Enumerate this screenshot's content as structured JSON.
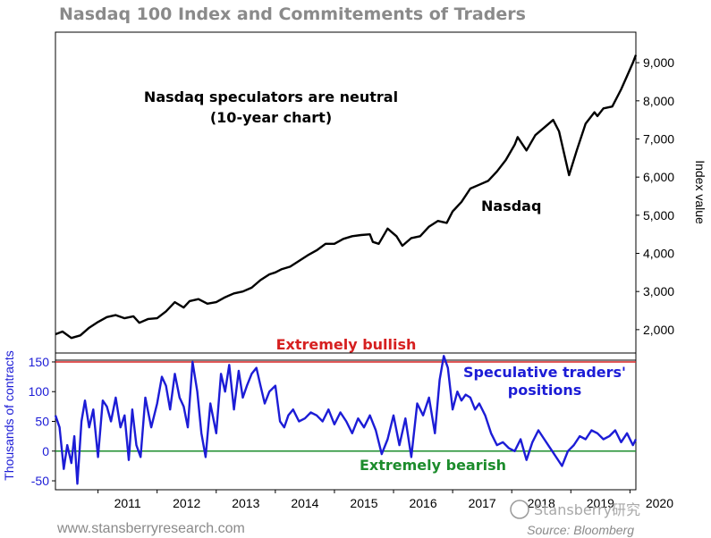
{
  "chart_data": [
    {
      "type": "line",
      "title": "Nasdaq 100 Index and Commitements of Traders",
      "annotation": "Nasdaq speculators are neutral",
      "annotation_sub": "(10-year chart)",
      "series_label": "Nasdaq",
      "ylabel": "Index value",
      "yticks": [
        "2,000",
        "3,000",
        "4,000",
        "5,000",
        "6,000",
        "7,000",
        "8,000",
        "9,000"
      ],
      "ylim": [
        1200,
        9800
      ],
      "xlim": [
        2010.28,
        2020.1
      ],
      "series": [
        {
          "name": "Nasdaq",
          "color": "#000000",
          "x": [
            2010.28,
            2010.4,
            2010.55,
            2010.7,
            2010.85,
            2011.0,
            2011.15,
            2011.3,
            2011.45,
            2011.6,
            2011.7,
            2011.85,
            2012.0,
            2012.15,
            2012.3,
            2012.45,
            2012.55,
            2012.7,
            2012.85,
            2013.0,
            2013.15,
            2013.3,
            2013.45,
            2013.6,
            2013.75,
            2013.9,
            2014.0,
            2014.1,
            2014.25,
            2014.4,
            2014.55,
            2014.7,
            2014.85,
            2015.0,
            2015.15,
            2015.3,
            2015.45,
            2015.6,
            2015.65,
            2015.75,
            2015.9,
            2016.05,
            2016.15,
            2016.3,
            2016.45,
            2016.6,
            2016.75,
            2016.9,
            2017.0,
            2017.15,
            2017.3,
            2017.45,
            2017.6,
            2017.75,
            2017.9,
            2018.05,
            2018.1,
            2018.25,
            2018.4,
            2018.55,
            2018.7,
            2018.8,
            2018.97,
            2019.1,
            2019.25,
            2019.4,
            2019.45,
            2019.55,
            2019.7,
            2019.85,
            2019.95,
            2020.05,
            2020.1
          ],
          "values": [
            1880,
            1950,
            1780,
            1850,
            2050,
            2200,
            2330,
            2380,
            2300,
            2350,
            2180,
            2280,
            2300,
            2480,
            2720,
            2580,
            2750,
            2800,
            2680,
            2720,
            2850,
            2950,
            3000,
            3100,
            3300,
            3450,
            3500,
            3580,
            3650,
            3800,
            3950,
            4080,
            4250,
            4250,
            4380,
            4450,
            4480,
            4500,
            4300,
            4250,
            4650,
            4450,
            4200,
            4400,
            4450,
            4700,
            4850,
            4800,
            5100,
            5350,
            5700,
            5800,
            5900,
            6150,
            6450,
            6850,
            7050,
            6700,
            7100,
            7300,
            7500,
            7200,
            6050,
            6700,
            7400,
            7700,
            7600,
            7800,
            7850,
            8300,
            8650,
            9000,
            9200
          ]
        }
      ]
    },
    {
      "type": "line",
      "ylabel": "Thousands of contracts",
      "yticks": [
        "150",
        "100",
        "50",
        "0",
        "-50"
      ],
      "ylim": [
        -65,
        165
      ],
      "xticks": [
        "2011",
        "2012",
        "2013",
        "2014",
        "2015",
        "2016",
        "2017",
        "2018",
        "2019",
        "2020"
      ],
      "bullish_label": "Extremely bullish",
      "bearish_label": "Extremely bearish",
      "bullish_level": 150,
      "bearish_level": 0,
      "series_label_1": "Speculative traders'",
      "series_label_2": "positions",
      "series": [
        {
          "name": "Speculative traders' positions",
          "color": "#1c1cd6",
          "x": [
            2010.28,
            2010.35,
            2010.42,
            2010.48,
            2010.55,
            2010.6,
            2010.65,
            2010.72,
            2010.78,
            2010.85,
            2010.92,
            2011.0,
            2011.08,
            2011.15,
            2011.22,
            2011.3,
            2011.38,
            2011.45,
            2011.52,
            2011.58,
            2011.65,
            2011.72,
            2011.8,
            2011.9,
            2012.0,
            2012.08,
            2012.15,
            2012.22,
            2012.3,
            2012.38,
            2012.45,
            2012.52,
            2012.6,
            2012.68,
            2012.75,
            2012.82,
            2012.9,
            2013.0,
            2013.08,
            2013.15,
            2013.22,
            2013.3,
            2013.38,
            2013.45,
            2013.52,
            2013.6,
            2013.68,
            2013.75,
            2013.82,
            2013.9,
            2014.0,
            2014.08,
            2014.15,
            2014.22,
            2014.3,
            2014.4,
            2014.5,
            2014.6,
            2014.7,
            2014.8,
            2014.9,
            2015.0,
            2015.1,
            2015.2,
            2015.3,
            2015.4,
            2015.5,
            2015.6,
            2015.7,
            2015.8,
            2015.9,
            2016.0,
            2016.1,
            2016.2,
            2016.3,
            2016.4,
            2016.5,
            2016.6,
            2016.7,
            2016.78,
            2016.85,
            2016.92,
            2017.0,
            2017.08,
            2017.15,
            2017.22,
            2017.3,
            2017.38,
            2017.45,
            2017.55,
            2017.65,
            2017.75,
            2017.85,
            2017.95,
            2018.05,
            2018.15,
            2018.25,
            2018.35,
            2018.45,
            2018.55,
            2018.65,
            2018.75,
            2018.85,
            2018.95,
            2019.05,
            2019.15,
            2019.25,
            2019.35,
            2019.45,
            2019.55,
            2019.65,
            2019.75,
            2019.85,
            2019.95,
            2020.05,
            2020.1
          ],
          "values": [
            60,
            40,
            -30,
            10,
            -20,
            25,
            -55,
            50,
            85,
            40,
            70,
            -10,
            85,
            75,
            50,
            90,
            40,
            60,
            -15,
            70,
            10,
            -10,
            90,
            40,
            80,
            125,
            110,
            70,
            130,
            90,
            75,
            40,
            150,
            100,
            30,
            -10,
            80,
            30,
            130,
            100,
            145,
            70,
            135,
            90,
            110,
            130,
            140,
            110,
            80,
            100,
            110,
            50,
            40,
            60,
            70,
            50,
            55,
            65,
            60,
            50,
            70,
            45,
            65,
            50,
            30,
            55,
            40,
            60,
            35,
            -5,
            20,
            60,
            10,
            55,
            -10,
            80,
            60,
            90,
            30,
            120,
            160,
            140,
            70,
            100,
            85,
            95,
            90,
            70,
            80,
            60,
            30,
            10,
            15,
            5,
            0,
            20,
            -15,
            15,
            35,
            20,
            5,
            -10,
            -25,
            0,
            10,
            25,
            20,
            35,
            30,
            20,
            25,
            35,
            15,
            30,
            10,
            20
          ]
        }
      ]
    }
  ],
  "footer": {
    "website": "www.stansberryresearch.com",
    "source": "Source: Bloomberg",
    "watermark": "Stansberry研究"
  }
}
